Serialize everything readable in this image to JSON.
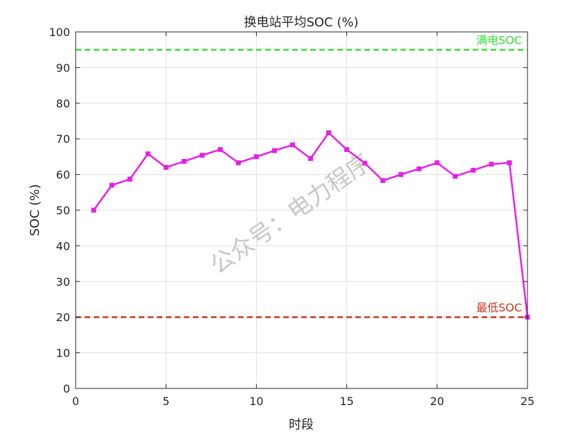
{
  "chart_data": {
    "type": "line",
    "title": "换电站平均SOC (%)",
    "xlabel": "时段",
    "ylabel": "SOC (%)",
    "xlim": [
      0,
      25
    ],
    "ylim": [
      0,
      100
    ],
    "xticks": [
      0,
      5,
      10,
      15,
      20,
      25
    ],
    "yticks": [
      0,
      10,
      20,
      30,
      40,
      50,
      60,
      70,
      80,
      90,
      100
    ],
    "grid": true,
    "series": [
      {
        "color": "#e61ee6",
        "marker": "square",
        "x": [
          1,
          2,
          3,
          4,
          5,
          6,
          7,
          8,
          9,
          10,
          11,
          12,
          13,
          14,
          15,
          16,
          17,
          18,
          19,
          20,
          21,
          22,
          23,
          24,
          25
        ],
        "y": [
          50,
          57,
          58.7,
          65.8,
          62,
          63.7,
          65.4,
          67,
          63.3,
          65,
          66.7,
          68.3,
          64.5,
          71.7,
          67,
          63.2,
          58.3,
          60,
          61.6,
          63.3,
          59.5,
          61.2,
          62.9,
          63.3,
          20
        ]
      }
    ],
    "reference_lines": [
      {
        "label": "满电SOC",
        "y": 95,
        "color": "#33dd33"
      },
      {
        "label": "最低SOC",
        "y": 20,
        "color": "#cc3322"
      }
    ]
  },
  "watermark": "公众号：电力程序"
}
